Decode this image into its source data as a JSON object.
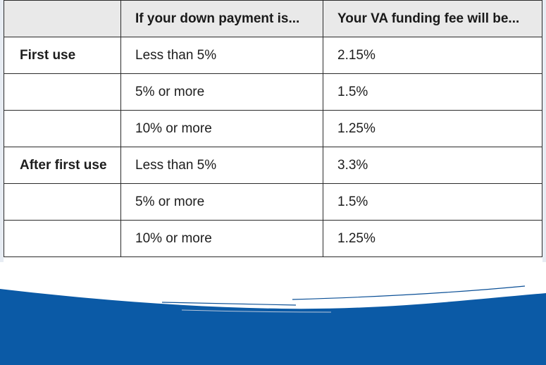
{
  "table": {
    "headers": [
      "",
      "If your down payment is...",
      "Your VA funding fee will be..."
    ],
    "rows": [
      {
        "use": "First use",
        "down_payment": "Less than 5%",
        "fee": "2.15%"
      },
      {
        "use": "",
        "down_payment": "5% or more",
        "fee": "1.5%"
      },
      {
        "use": "",
        "down_payment": "10% or more",
        "fee": "1.25%"
      },
      {
        "use": "After first use",
        "down_payment": "Less than 5%",
        "fee": "3.3%"
      },
      {
        "use": "",
        "down_payment": "5% or more",
        "fee": "1.5%"
      },
      {
        "use": "",
        "down_payment": "10% or more",
        "fee": "1.25%"
      }
    ]
  },
  "colors": {
    "header_background": "#e9e9e9",
    "border": "#2b2b2b",
    "wave_blue": "#0b5aa6",
    "wave_dark": "#0a4f96"
  }
}
